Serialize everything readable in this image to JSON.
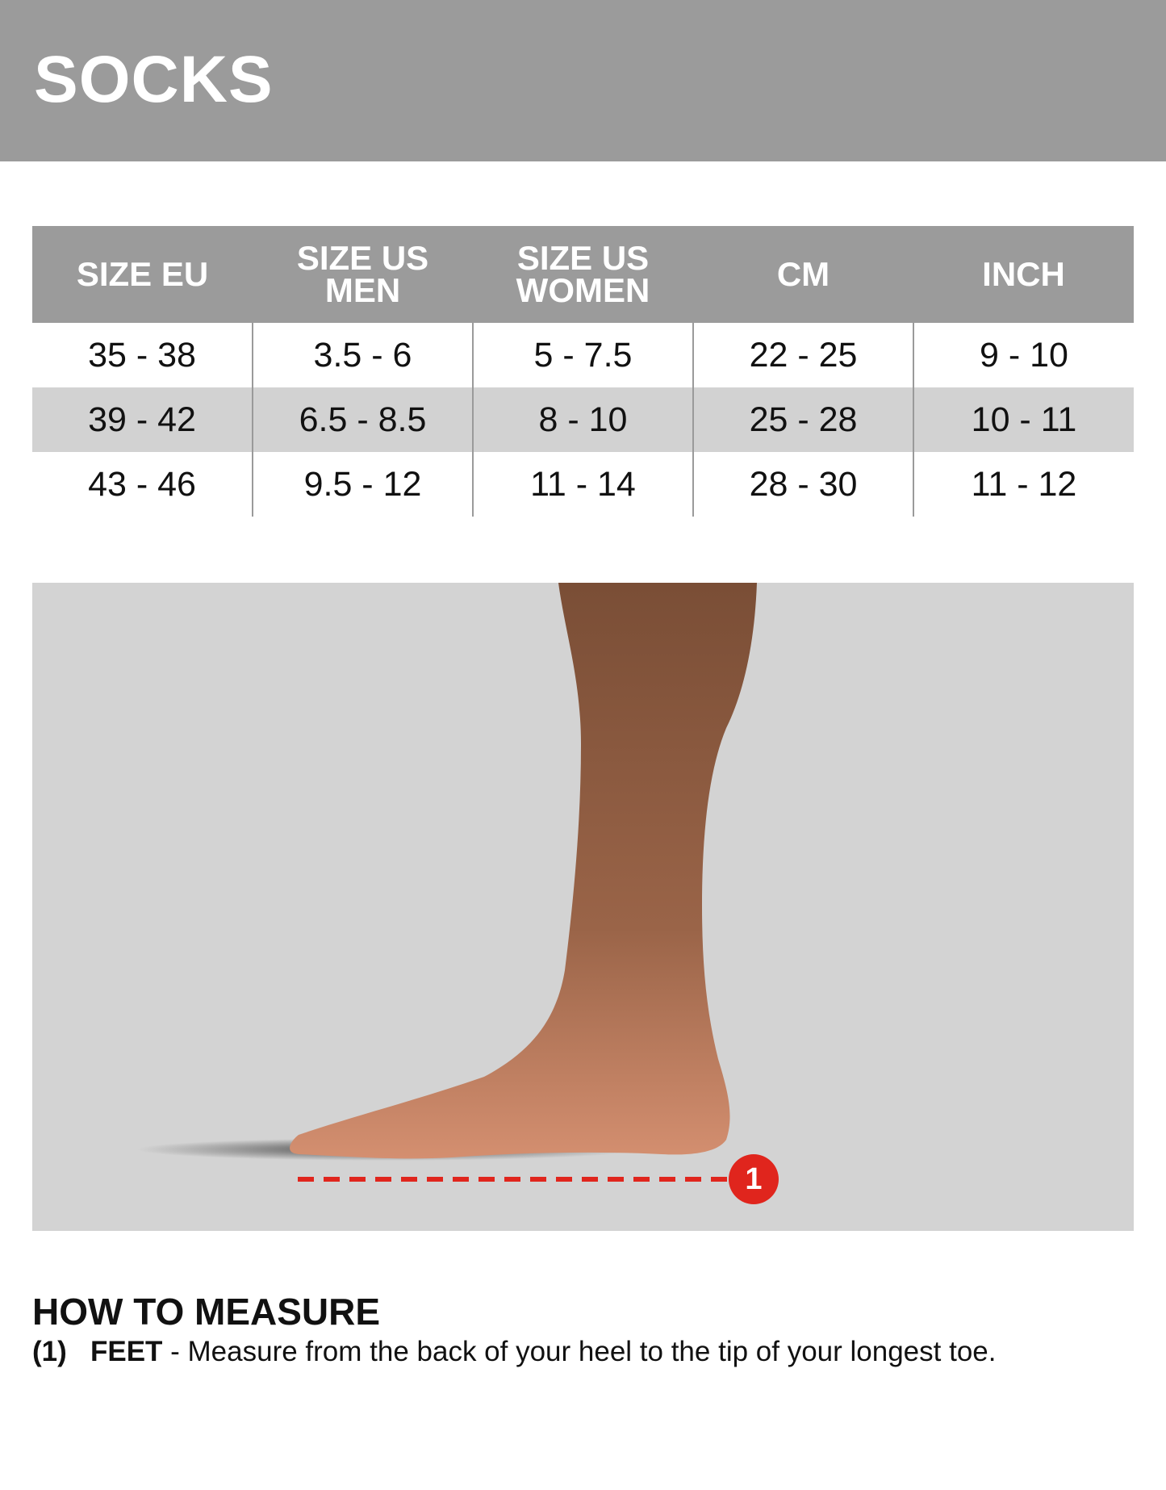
{
  "header": {
    "title": "SOCKS"
  },
  "table": {
    "columns": [
      "SIZE EU",
      "SIZE US MEN",
      "SIZE US WOMEN",
      "CM",
      "INCH"
    ],
    "rows": [
      [
        "35 - 38",
        "3.5 - 6",
        "5 - 7.5",
        "22 - 25",
        "9 - 10"
      ],
      [
        "39 - 42",
        "6.5 - 8.5",
        "8 - 10",
        "25 - 28",
        "10 - 11"
      ],
      [
        "43 - 46",
        "9.5 - 12",
        "11 - 14",
        "28 - 30",
        "11 - 12"
      ]
    ]
  },
  "figure": {
    "marker_label": "1",
    "marker_color": "#e0251d"
  },
  "instructions": {
    "heading": "HOW TO MEASURE",
    "steps": [
      {
        "number": "(1)",
        "label": "FEET",
        "text": " - Measure from the back of your heel to the tip of your longest toe."
      }
    ]
  }
}
